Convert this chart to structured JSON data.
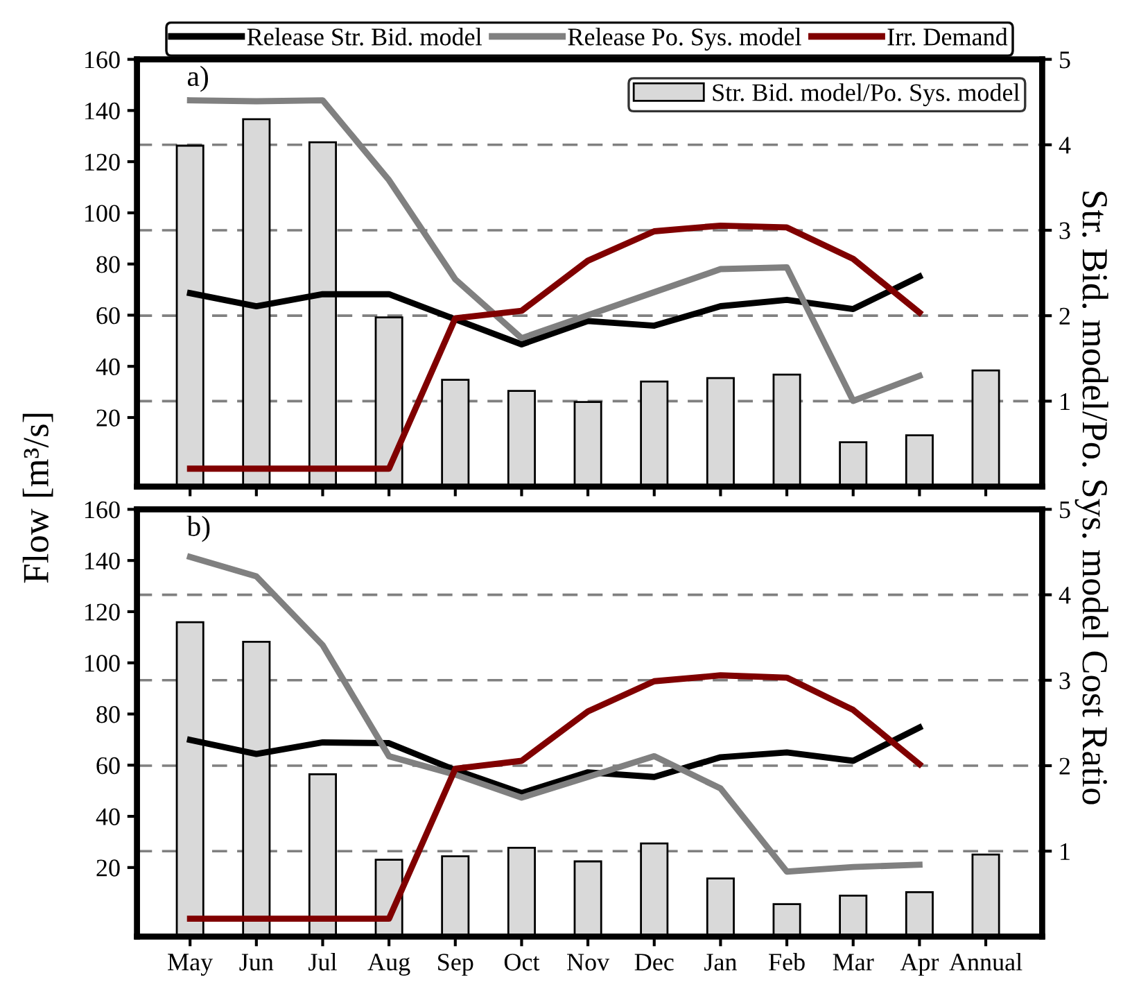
{
  "chart_data": [
    {
      "type": "line",
      "categories": [
        null,
        null,
        null,
        null,
        null,
        null,
        null,
        null,
        null,
        null,
        null,
        null,
        null
      ],
      "ylabel": "Flow [m³/s]",
      "y2label": "Str. Bid. model/Po. Sys. model Cost Ratio",
      "annotations": [
        "a)"
      ],
      "ylim": [
        -7,
        160
      ],
      "yticks": [
        20,
        40,
        60,
        80,
        100,
        120,
        140,
        160
      ],
      "y2lim": [
        0,
        5
      ],
      "y2ticks": [
        1,
        2,
        3,
        4,
        5
      ],
      "grid": "y2",
      "legend": "top",
      "tick_labels": "y",
      "series": [
        {
          "name": "Str. Bid. model/Po. Sys. model",
          "type": "bar",
          "axis": "y2",
          "color": "#d9d9d9",
          "values": [
            3.99,
            4.3,
            4.03,
            1.98,
            1.25,
            1.12,
            0.99,
            1.23,
            1.27,
            1.31,
            0.52,
            0.6,
            1.36
          ]
        },
        {
          "name": "Release Str. Bid. model",
          "color": "#000000",
          "values": [
            68.6,
            63.5,
            68.2,
            68.2,
            58.4,
            48.6,
            57.7,
            55.9,
            63.5,
            66,
            62.4,
            75.1,
            null
          ]
        },
        {
          "name": "Release Po. Sys. model",
          "color": "#808080",
          "values": [
            144,
            143.6,
            144,
            112.8,
            74,
            51,
            60,
            69,
            78,
            78.7,
            26.5,
            36.3,
            null
          ]
        },
        {
          "name": "Irr. Demand",
          "color": "#800000",
          "values": [
            0,
            0,
            0,
            0,
            58.8,
            61.7,
            81.3,
            92.8,
            95,
            94.3,
            82,
            61,
            null
          ]
        }
      ]
    },
    {
      "type": "line",
      "categories": [
        "May",
        "Jun",
        "Jul",
        "Aug",
        "Sep",
        "Oct",
        "Nov",
        "Dec",
        "Jan",
        "Feb",
        "Mar",
        "Apr",
        "Annual"
      ],
      "annotations": [
        "b)"
      ],
      "ylim": [
        -7,
        160
      ],
      "yticks": [
        20,
        40,
        60,
        80,
        100,
        120,
        140,
        160
      ],
      "y2lim": [
        0,
        5
      ],
      "y2ticks": [
        1,
        2,
        3,
        4,
        5
      ],
      "grid": "y2",
      "series": [
        {
          "type": "bar",
          "axis": "y2",
          "color": "#d9d9d9",
          "values": [
            3.68,
            3.45,
            1.9,
            0.9,
            0.94,
            1.04,
            0.88,
            1.09,
            0.68,
            0.38,
            0.48,
            0.52,
            0.96
          ]
        },
        {
          "color": "#000000",
          "values": [
            69.9,
            64.4,
            68.9,
            68.6,
            58.1,
            49.1,
            57.2,
            55.4,
            63.1,
            65,
            61.7,
            74.7,
            null
          ]
        },
        {
          "color": "#808080",
          "values": [
            141.4,
            133.8,
            106.9,
            63.5,
            56.3,
            47.3,
            55.4,
            63.5,
            50.9,
            18.4,
            20.2,
            21.1,
            null
          ]
        },
        {
          "color": "#800000",
          "values": [
            0,
            0,
            0,
            0,
            58.6,
            61.7,
            81,
            92.8,
            95.1,
            94.2,
            81.6,
            60.4,
            null
          ]
        }
      ]
    }
  ]
}
